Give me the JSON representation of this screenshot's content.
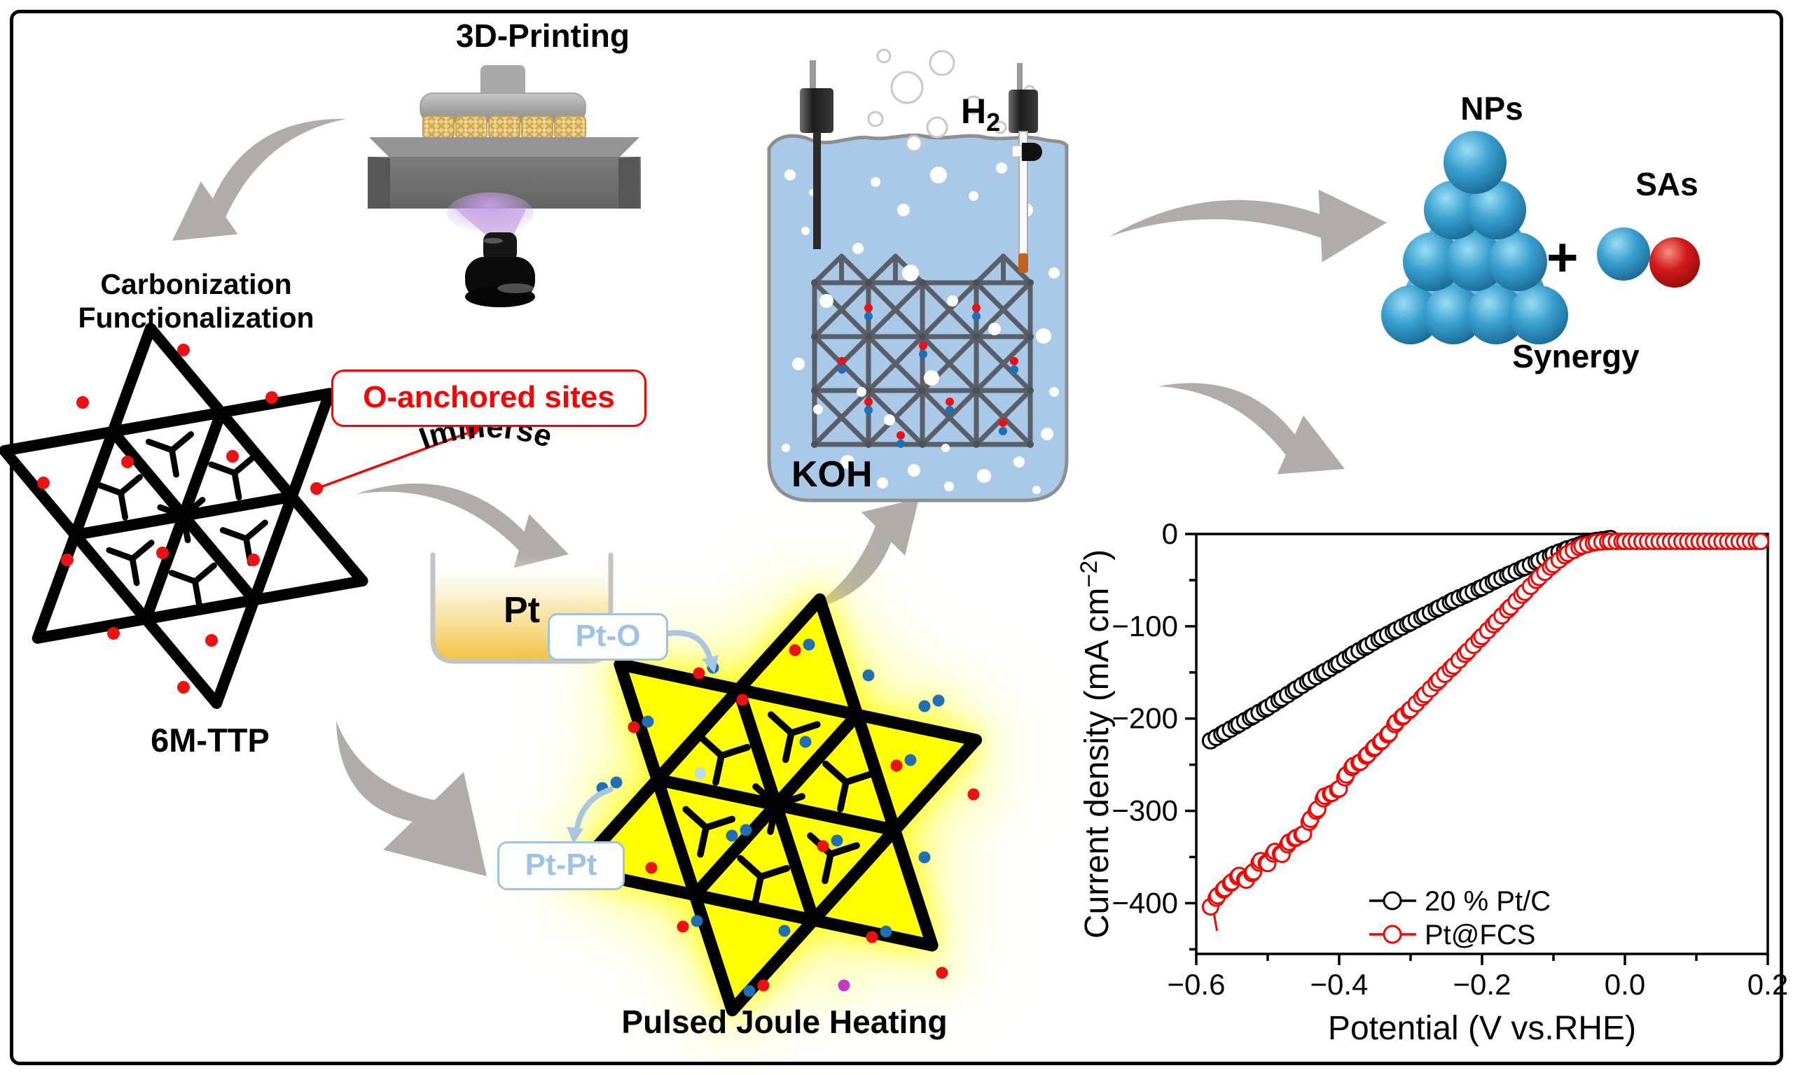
{
  "labels": {
    "printing": "3D-Printing",
    "carbonization_line1": "Carbonization",
    "carbonization_line2": "Functionalization",
    "o_anchored": "O-anchored sites",
    "immerse": "Immerse",
    "pt_beaker": "Pt",
    "six_m_ttp": "6M-TTP",
    "pt_o": "Pt-O",
    "pt_pt": "Pt-Pt",
    "pulsed_joule_heating": "Pulsed Joule Heating",
    "h2_base": "H",
    "h2_sub": "2",
    "koh": "KOH",
    "nps": "NPs",
    "plus": "+",
    "sas": "SAs",
    "synergy": "Synergy"
  },
  "colors": {
    "accent_red": "#FF0000",
    "label_blue": "#9DC3E6",
    "arrow_gray": "#B1ACA9",
    "liquid_blue": "#A9C9E9",
    "glow_yellow": "#FFFF00",
    "lattice_black": "#000000",
    "truss_gray": "#5A5E66",
    "sphere_blue": "#2E96C8",
    "sphere_red": "#CC1111",
    "o_dot_red": "#EE1111",
    "pt_dot_blue": "#1F6FB5"
  },
  "chart_data": {
    "type": "scatter",
    "xlabel": "Potential (V vs.RHE)",
    "ylabel_main": "Current density (mA cm",
    "ylabel_sup": "−2",
    "ylabel_end": ")",
    "xlim": [
      -0.6,
      0.2
    ],
    "ylim": [
      -455,
      0
    ],
    "grid": false,
    "legend_position": "lower right",
    "xticks": [
      {
        "v": -0.6,
        "label": "−0.6"
      },
      {
        "v": -0.4,
        "label": "−0.4"
      },
      {
        "v": -0.2,
        "label": "−0.2"
      },
      {
        "v": 0.0,
        "label": "0.0"
      },
      {
        "v": 0.2,
        "label": "0.2"
      }
    ],
    "xminor": [
      -0.5,
      -0.3,
      -0.1,
      0.1
    ],
    "yticks": [
      {
        "v": 0,
        "label": "0"
      },
      {
        "v": -100,
        "label": "−100"
      },
      {
        "v": -200,
        "label": "−200"
      },
      {
        "v": -300,
        "label": "−300"
      },
      {
        "v": -400,
        "label": "−400"
      }
    ],
    "yminor": [
      -50,
      -150,
      -250,
      -350,
      -450
    ],
    "marker_radius": 11,
    "marker_step": 0.008,
    "series": [
      {
        "name": "20 % Pt/C",
        "color": "#000000",
        "marker": "open-circle",
        "points": [
          [
            -0.58,
            -224
          ],
          [
            -0.56,
            -215
          ],
          [
            -0.54,
            -206
          ],
          [
            -0.52,
            -197
          ],
          [
            -0.5,
            -188
          ],
          [
            -0.48,
            -178
          ],
          [
            -0.46,
            -168
          ],
          [
            -0.44,
            -158
          ],
          [
            -0.42,
            -149
          ],
          [
            -0.4,
            -140
          ],
          [
            -0.38,
            -130
          ],
          [
            -0.36,
            -121
          ],
          [
            -0.34,
            -112
          ],
          [
            -0.32,
            -104
          ],
          [
            -0.3,
            -96
          ],
          [
            -0.28,
            -88
          ],
          [
            -0.26,
            -80
          ],
          [
            -0.24,
            -72
          ],
          [
            -0.22,
            -65
          ],
          [
            -0.2,
            -58
          ],
          [
            -0.18,
            -50
          ],
          [
            -0.16,
            -43
          ],
          [
            -0.14,
            -36
          ],
          [
            -0.12,
            -29
          ],
          [
            -0.1,
            -22
          ],
          [
            -0.08,
            -16
          ],
          [
            -0.06,
            -11
          ],
          [
            -0.04,
            -7
          ],
          [
            -0.02,
            -5
          ]
        ]
      },
      {
        "name": "Pt@FCS",
        "color": "#FF0000",
        "marker": "open-circle",
        "start_tail": [
          [
            -0.576,
            -408
          ],
          [
            -0.571,
            -430
          ]
        ],
        "points": [
          [
            -0.58,
            -404
          ],
          [
            -0.57,
            -392
          ],
          [
            -0.56,
            -384
          ],
          [
            -0.55,
            -377
          ],
          [
            -0.54,
            -370
          ],
          [
            -0.53,
            -375
          ],
          [
            -0.52,
            -366
          ],
          [
            -0.51,
            -354
          ],
          [
            -0.5,
            -357
          ],
          [
            -0.49,
            -344
          ],
          [
            -0.48,
            -347
          ],
          [
            -0.47,
            -334
          ],
          [
            -0.46,
            -329
          ],
          [
            -0.45,
            -325
          ],
          [
            -0.44,
            -309
          ],
          [
            -0.43,
            -298
          ],
          [
            -0.42,
            -284
          ],
          [
            -0.41,
            -281
          ],
          [
            -0.4,
            -276
          ],
          [
            -0.39,
            -261
          ],
          [
            -0.38,
            -251
          ],
          [
            -0.37,
            -247
          ],
          [
            -0.36,
            -239
          ],
          [
            -0.35,
            -231
          ],
          [
            -0.34,
            -224
          ],
          [
            -0.33,
            -216
          ],
          [
            -0.32,
            -204
          ],
          [
            -0.31,
            -197
          ],
          [
            -0.3,
            -190
          ],
          [
            -0.28,
            -174
          ],
          [
            -0.26,
            -158
          ],
          [
            -0.24,
            -143
          ],
          [
            -0.22,
            -127
          ],
          [
            -0.2,
            -111
          ],
          [
            -0.18,
            -95
          ],
          [
            -0.16,
            -79
          ],
          [
            -0.14,
            -63
          ],
          [
            -0.12,
            -47
          ],
          [
            -0.1,
            -33
          ],
          [
            -0.08,
            -21
          ],
          [
            -0.06,
            -13
          ],
          [
            -0.04,
            -9
          ],
          [
            -0.02,
            -8
          ],
          [
            0.0,
            -8
          ],
          [
            0.04,
            -8
          ],
          [
            0.08,
            -8
          ],
          [
            0.12,
            -8
          ],
          [
            0.16,
            -8
          ],
          [
            0.19,
            -8
          ]
        ]
      }
    ],
    "legend": [
      {
        "label": "20 % Pt/C",
        "color": "#000000"
      },
      {
        "label": "Pt@FCS",
        "color": "#FF0000"
      }
    ]
  }
}
